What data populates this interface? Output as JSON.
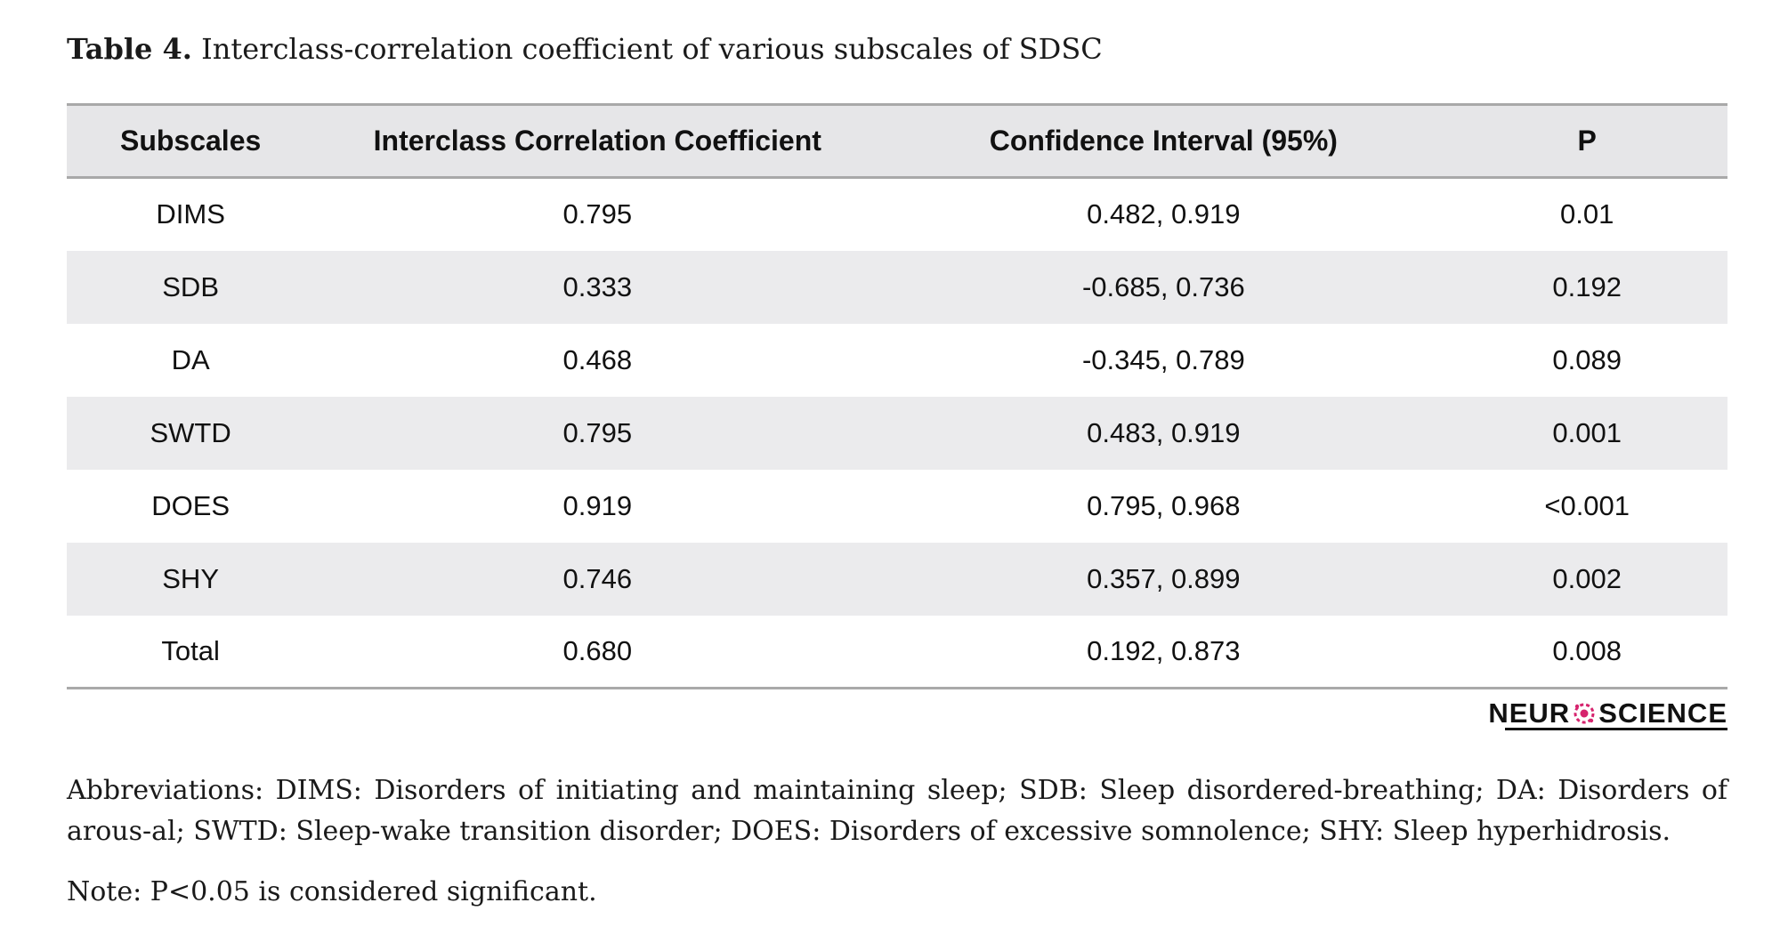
{
  "caption": {
    "label": "Table 4.",
    "text": " Interclass-correlation coefficient of various subscales of SDSC"
  },
  "table": {
    "headers": [
      "Subscales",
      "Interclass Correlation Coefficient",
      "Confidence Interval (95%)",
      "P"
    ],
    "rows": [
      [
        "DIMS",
        "0.795",
        "0.482, 0.919",
        "0.01"
      ],
      [
        "SDB",
        "0.333",
        "-0.685, 0.736",
        "0.192"
      ],
      [
        "DA",
        "0.468",
        "-0.345, 0.789",
        "0.089"
      ],
      [
        "SWTD",
        "0.795",
        "0.483, 0.919",
        "0.001"
      ],
      [
        "DOES",
        "0.919",
        "0.795, 0.968",
        "<0.001"
      ],
      [
        "SHY",
        "0.746",
        "0.357, 0.899",
        "0.002"
      ],
      [
        "Total",
        "0.680",
        "0.192, 0.873",
        "0.008"
      ]
    ]
  },
  "logo": {
    "text_left": "NEUR",
    "text_right": "SCIENCE",
    "accent_color": "#d6246e"
  },
  "footnotes": {
    "abbreviations": "Abbreviations: DIMS: Disorders of initiating and maintaining sleep; SDB: Sleep disordered-breathing; DA: Disorders of arous-al; SWTD: Sleep-wake transition disorder; DOES: Disorders of excessive somnolence; SHY: Sleep hyperhidrosis.",
    "note": "Note: P<0.05 is considered significant."
  }
}
